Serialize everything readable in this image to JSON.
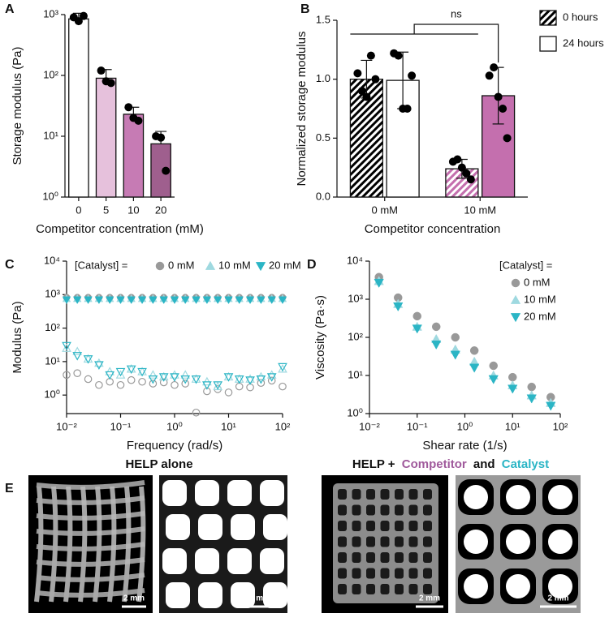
{
  "chart_data": [
    {
      "type": "bar",
      "panel": "A",
      "y_label": "Storage modulus (Pa)",
      "x_label": "Competitor concentration (mM)",
      "categories": [
        "0",
        "5",
        "10",
        "20"
      ],
      "values": [
        850,
        90,
        23,
        7.5
      ],
      "errors": [
        200,
        35,
        7,
        4.5
      ],
      "points": [
        [
          900,
          780,
          950
        ],
        [
          120,
          80,
          75
        ],
        [
          30,
          20,
          18
        ],
        [
          10,
          9.5,
          2.7
        ]
      ],
      "colors": [
        "#ffffff",
        "#e6c1dc",
        "#c67bb4",
        "#9f5f8e"
      ],
      "ylog": true,
      "ylim": [
        1,
        1000
      ],
      "yticks": [
        {
          "value": 1,
          "label": "10⁰"
        },
        {
          "value": 10,
          "label": "10¹"
        },
        {
          "value": 100,
          "label": "10²"
        },
        {
          "value": 1000,
          "label": "10³"
        }
      ]
    },
    {
      "type": "grouped_bar",
      "panel": "B",
      "y_label": "Normalized storage modulus",
      "x_label": "Competitor concentration",
      "categories": [
        "0 mM",
        "10 mM"
      ],
      "series": [
        {
          "name": "0 hours",
          "hatch": true,
          "colors": [
            "#000000",
            "#c46fae"
          ],
          "values": [
            1.0,
            0.24
          ],
          "errors": [
            0.16,
            0.08
          ],
          "points": [
            [
              1.05,
              0.9,
              0.85,
              1.2,
              1.0
            ],
            [
              0.3,
              0.32,
              0.25,
              0.2,
              0.15
            ]
          ]
        },
        {
          "name": "24 hours",
          "hatch": false,
          "colors": [
            "#ffffff",
            "#c46fae"
          ],
          "values": [
            0.99,
            0.86
          ],
          "errors": [
            0.24,
            0.24
          ],
          "points": [
            [
              1.22,
              1.2,
              0.75,
              0.75,
              1.03
            ],
            [
              1.03,
              1.1,
              0.85,
              0.75,
              0.5
            ]
          ]
        }
      ],
      "annotation": "ns",
      "ylim": [
        0,
        1.5
      ],
      "yticks": [
        {
          "value": 0,
          "label": "0.0"
        },
        0.5,
        {
          "value": 1,
          "label": "1.0"
        },
        1.5
      ]
    },
    {
      "type": "scatter",
      "panel": "C",
      "y_label": "Modulus (Pa)",
      "x_label": "Frequency (rad/s)",
      "legend_title": "[Catalyst] =",
      "x": [
        0.01,
        0.0158,
        0.0251,
        0.0398,
        0.0631,
        0.1,
        0.158,
        0.251,
        0.398,
        0.631,
        1,
        1.58,
        2.51,
        3.98,
        6.31,
        10,
        15.8,
        25.1,
        39.8,
        63.1,
        100
      ],
      "series": [
        {
          "name": "0 mM",
          "marker": "circle",
          "color": "#999999",
          "values": [
            820,
            820,
            820,
            820,
            820,
            820,
            820,
            820,
            820,
            820,
            820,
            820,
            820,
            820,
            820,
            820,
            820,
            820,
            820,
            820,
            820
          ],
          "open_values": [
            4,
            4.5,
            3,
            2,
            2.5,
            2,
            2.8,
            2.5,
            2.2,
            2.4,
            2,
            2.2,
            0.3,
            1.3,
            1.5,
            1.2,
            1.8,
            1.7,
            2.3,
            2.7,
            1.8
          ]
        },
        {
          "name": "10 mM",
          "marker": "triangle-up",
          "color": "#9fd9e0",
          "values": [
            760,
            760,
            760,
            760,
            760,
            760,
            760,
            760,
            760,
            760,
            760,
            760,
            760,
            760,
            760,
            760,
            760,
            760,
            760,
            760,
            760
          ],
          "open_values": [
            25,
            20,
            12,
            9,
            5,
            4,
            6,
            5,
            4,
            3.5,
            4,
            4,
            3,
            2.5,
            1.8,
            3.5,
            3,
            3,
            3.5,
            4,
            6
          ]
        },
        {
          "name": "20 mM",
          "marker": "triangle-down",
          "color": "#2bb5c5",
          "values": [
            700,
            700,
            700,
            700,
            700,
            700,
            700,
            700,
            700,
            700,
            700,
            700,
            700,
            700,
            700,
            700,
            700,
            700,
            700,
            700,
            700
          ],
          "open_values": [
            30,
            15,
            12,
            8,
            4,
            5,
            6,
            5,
            3,
            3.5,
            3.5,
            3,
            3,
            2,
            2,
            3.5,
            3,
            2.8,
            3,
            3.5,
            7
          ]
        }
      ],
      "xlog": true,
      "ylog": true,
      "xlim": [
        0.01,
        100
      ],
      "ylim": [
        0.28,
        10000
      ],
      "xticks": [
        {
          "value": 0.01,
          "label": "10⁻²"
        },
        {
          "value": 0.1,
          "label": "10⁻¹"
        },
        {
          "value": 1,
          "label": "10⁰"
        },
        {
          "value": 10,
          "label": "10¹"
        },
        {
          "value": 100,
          "label": "10²"
        }
      ],
      "yticks": [
        {
          "value": 1,
          "label": "10⁰"
        },
        {
          "value": 10,
          "label": "10¹"
        },
        {
          "value": 100,
          "label": "10²"
        },
        {
          "value": 1000,
          "label": "10³"
        },
        {
          "value": 10000,
          "label": "10⁴"
        }
      ]
    },
    {
      "type": "scatter",
      "panel": "D",
      "y_label": "Viscosity (Pa·s)",
      "x_label": "Shear rate (1/s)",
      "legend_title": "[Catalyst] =",
      "x": [
        0.0158,
        0.0398,
        0.1,
        0.251,
        0.631,
        1.58,
        3.98,
        10,
        25.1,
        63.1
      ],
      "series": [
        {
          "name": "0 mM",
          "marker": "circle",
          "color": "#999999",
          "values": [
            3800,
            1100,
            360,
            190,
            100,
            45,
            18,
            9,
            5,
            2.7
          ]
        },
        {
          "name": "10 mM",
          "marker": "triangle-up",
          "color": "#9fd9e0",
          "values": [
            3000,
            750,
            190,
            90,
            48,
            23,
            10,
            5.5,
            3,
            1.9
          ]
        },
        {
          "name": "20 mM",
          "marker": "triangle-down",
          "color": "#2bb5c5",
          "values": [
            2700,
            650,
            170,
            65,
            35,
            16,
            8,
            4.5,
            2.5,
            1.6
          ]
        }
      ],
      "xlog": true,
      "ylog": true,
      "xlim": [
        0.01,
        100
      ],
      "ylim": [
        1,
        10000
      ],
      "xticks": [
        {
          "value": 0.01,
          "label": "10⁻²"
        },
        {
          "value": 0.1,
          "label": "10⁻¹"
        },
        {
          "value": 1,
          "label": "10⁰"
        },
        {
          "value": 10,
          "label": "10¹"
        },
        {
          "value": 100,
          "label": "10²"
        }
      ],
      "yticks": [
        {
          "value": 1,
          "label": "10⁰"
        },
        {
          "value": 10,
          "label": "10¹"
        },
        {
          "value": 100,
          "label": "10²"
        },
        {
          "value": 1000,
          "label": "10³"
        },
        {
          "value": 10000,
          "label": "10⁴"
        }
      ]
    }
  ],
  "panel_e": {
    "panel": "E",
    "left_title": "HELP alone",
    "right_title": [
      "HELP +",
      "Competitor",
      "and",
      "Catalyst"
    ],
    "scale_labels": [
      "2 mm",
      "2 mm",
      "2 mm",
      "2 mm"
    ]
  }
}
